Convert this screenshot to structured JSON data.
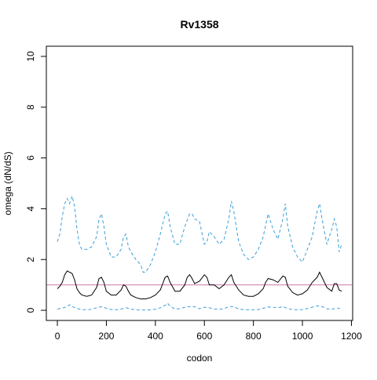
{
  "chart_data": {
    "type": "line",
    "title": "Rv1358",
    "xlabel": "codon",
    "ylabel": "omega (dN/dS)",
    "xlim": [
      -45,
      1205
    ],
    "ylim": [
      -0.4,
      10.4
    ],
    "x_ticks": [
      0,
      200,
      400,
      600,
      800,
      1000,
      1200
    ],
    "y_ticks": [
      0,
      2,
      4,
      6,
      8,
      10
    ],
    "x_tick_labels": [
      "0",
      "200",
      "400",
      "600",
      "800",
      "1000",
      "1200"
    ],
    "y_tick_labels": [
      "0",
      "2",
      "4",
      "6",
      "8",
      "10"
    ],
    "grid": false,
    "legend": "none",
    "reference_line": {
      "y": 1.0,
      "color": "#cc79a7"
    },
    "series": [
      {
        "role": "upper-bound",
        "style": "dashed",
        "color": "#3a9fd8",
        "x": [
          0,
          10,
          20,
          30,
          40,
          50,
          60,
          70,
          80,
          90,
          100,
          120,
          140,
          160,
          170,
          180,
          190,
          200,
          220,
          240,
          260,
          270,
          280,
          290,
          300,
          320,
          340,
          350,
          360,
          380,
          400,
          420,
          440,
          450,
          460,
          480,
          500,
          520,
          540,
          550,
          560,
          580,
          600,
          610,
          620,
          640,
          660,
          680,
          700,
          710,
          720,
          740,
          760,
          780,
          800,
          820,
          840,
          860,
          870,
          880,
          900,
          920,
          930,
          940,
          960,
          980,
          1000,
          1020,
          1040,
          1060,
          1070,
          1080,
          1100,
          1120,
          1130,
          1140,
          1150,
          1160
        ],
        "y": [
          2.7,
          3.0,
          3.7,
          4.2,
          4.4,
          4.2,
          4.5,
          4.1,
          3.2,
          2.6,
          2.4,
          2.4,
          2.5,
          2.9,
          3.6,
          3.8,
          3.3,
          2.6,
          2.1,
          2.1,
          2.4,
          2.9,
          3.0,
          2.5,
          2.3,
          2.0,
          1.8,
          1.5,
          1.5,
          1.8,
          2.3,
          3.0,
          3.8,
          3.9,
          3.3,
          2.6,
          2.6,
          3.3,
          3.8,
          3.8,
          3.6,
          3.5,
          2.6,
          2.7,
          3.1,
          2.9,
          2.6,
          2.8,
          3.6,
          4.3,
          3.9,
          2.7,
          2.2,
          2.0,
          2.1,
          2.4,
          2.9,
          3.8,
          3.5,
          3.2,
          2.8,
          3.6,
          4.2,
          3.3,
          2.5,
          2.1,
          1.9,
          2.4,
          2.9,
          3.9,
          4.2,
          3.6,
          2.6,
          3.2,
          3.6,
          3.3,
          2.3,
          2.6
        ]
      },
      {
        "role": "estimate",
        "style": "solid",
        "color": "#000000",
        "x": [
          0,
          10,
          20,
          30,
          40,
          50,
          60,
          70,
          80,
          90,
          100,
          120,
          140,
          160,
          170,
          180,
          190,
          200,
          220,
          240,
          260,
          270,
          280,
          290,
          300,
          320,
          340,
          360,
          380,
          400,
          420,
          430,
          440,
          450,
          460,
          480,
          500,
          520,
          530,
          540,
          550,
          560,
          580,
          600,
          610,
          620,
          640,
          660,
          680,
          700,
          710,
          720,
          740,
          760,
          780,
          800,
          820,
          840,
          850,
          860,
          880,
          900,
          920,
          930,
          940,
          960,
          980,
          1000,
          1020,
          1040,
          1060,
          1070,
          1080,
          1100,
          1120,
          1130,
          1140,
          1150,
          1160
        ],
        "y": [
          0.85,
          0.95,
          1.1,
          1.4,
          1.55,
          1.5,
          1.45,
          1.2,
          0.85,
          0.7,
          0.6,
          0.55,
          0.6,
          0.9,
          1.25,
          1.3,
          1.1,
          0.75,
          0.6,
          0.6,
          0.8,
          1.0,
          0.95,
          0.75,
          0.6,
          0.5,
          0.45,
          0.45,
          0.5,
          0.6,
          0.8,
          1.05,
          1.3,
          1.35,
          1.1,
          0.75,
          0.75,
          1.0,
          1.3,
          1.4,
          1.25,
          1.05,
          1.15,
          1.4,
          1.3,
          1.0,
          1.0,
          0.85,
          1.0,
          1.3,
          1.4,
          1.1,
          0.8,
          0.6,
          0.55,
          0.55,
          0.65,
          0.85,
          1.1,
          1.25,
          1.2,
          1.1,
          1.35,
          1.3,
          0.95,
          0.7,
          0.6,
          0.65,
          0.8,
          1.1,
          1.3,
          1.5,
          1.3,
          0.9,
          0.75,
          1.05,
          1.05,
          0.8,
          0.75
        ]
      },
      {
        "role": "lower-bound",
        "style": "dashed",
        "color": "#3a9fd8",
        "x": [
          0,
          20,
          40,
          50,
          60,
          80,
          100,
          120,
          140,
          160,
          180,
          200,
          220,
          240,
          260,
          280,
          300,
          320,
          340,
          360,
          380,
          400,
          420,
          440,
          450,
          460,
          480,
          500,
          520,
          540,
          560,
          580,
          600,
          620,
          640,
          660,
          680,
          700,
          720,
          740,
          760,
          780,
          800,
          820,
          840,
          860,
          880,
          900,
          920,
          940,
          960,
          980,
          1000,
          1020,
          1040,
          1060,
          1080,
          1100,
          1120,
          1140,
          1160
        ],
        "y": [
          0.05,
          0.08,
          0.15,
          0.22,
          0.15,
          0.07,
          0.03,
          0.02,
          0.04,
          0.1,
          0.14,
          0.08,
          0.03,
          0.02,
          0.05,
          0.1,
          0.05,
          0.02,
          0.01,
          0.01,
          0.02,
          0.04,
          0.1,
          0.2,
          0.28,
          0.16,
          0.05,
          0.06,
          0.12,
          0.15,
          0.14,
          0.06,
          0.12,
          0.1,
          0.05,
          0.04,
          0.06,
          0.15,
          0.14,
          0.05,
          0.03,
          0.02,
          0.02,
          0.03,
          0.08,
          0.13,
          0.12,
          0.1,
          0.15,
          0.07,
          0.03,
          0.02,
          0.03,
          0.07,
          0.12,
          0.18,
          0.15,
          0.06,
          0.04,
          0.1,
          0.04
        ]
      }
    ]
  }
}
